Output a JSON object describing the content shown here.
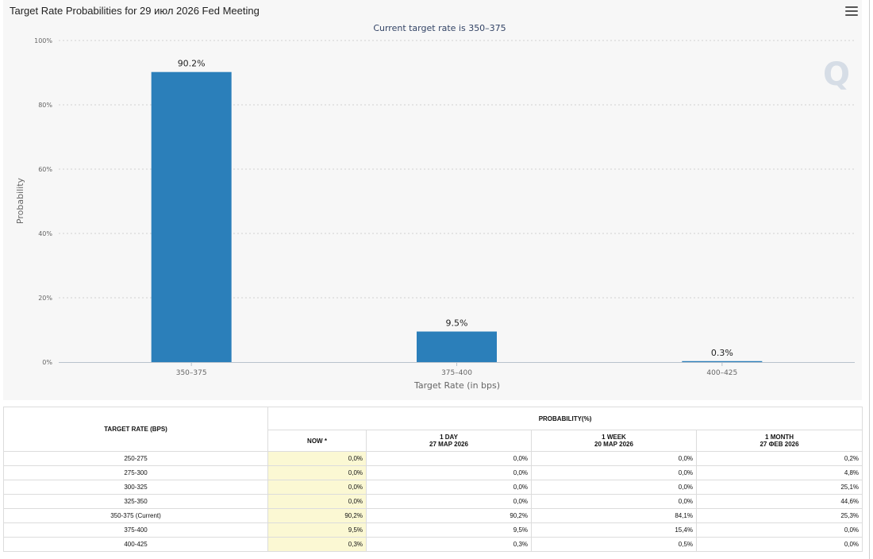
{
  "header": {
    "title": "Target Rate Probabilities for 29 июл 2026 Fed Meeting"
  },
  "chart_data": {
    "type": "bar",
    "subtitle": "Current target rate is 350–375",
    "categories": [
      "350–375",
      "375–400",
      "400–425"
    ],
    "values": [
      90.2,
      9.5,
      0.3
    ],
    "data_labels": [
      "90.2%",
      "9.5%",
      "0.3%"
    ],
    "xlabel": "Target Rate (in bps)",
    "ylabel": "Probability",
    "ylim": [
      0,
      100
    ],
    "yticks": [
      "0%",
      "20%",
      "40%",
      "60%",
      "80%",
      "100%"
    ],
    "grid": true,
    "bar_color": "#2b7fba"
  },
  "table": {
    "rate_header": "TARGET RATE (BPS)",
    "prob_header": "PROBABILITY(%)",
    "columns": [
      {
        "label": "NOW *",
        "date": ""
      },
      {
        "label": "1 DAY",
        "date": "27 МАР 2026"
      },
      {
        "label": "1 WEEK",
        "date": "20 МАР 2026"
      },
      {
        "label": "1 MONTH",
        "date": "27 ФЕВ 2026"
      }
    ],
    "rows": [
      {
        "rate": "250-275",
        "now": "0,0%",
        "day": "0,0%",
        "week": "0,0%",
        "month": "0,2%"
      },
      {
        "rate": "275-300",
        "now": "0,0%",
        "day": "0,0%",
        "week": "0,0%",
        "month": "4,8%"
      },
      {
        "rate": "300-325",
        "now": "0,0%",
        "day": "0,0%",
        "week": "0,0%",
        "month": "25,1%"
      },
      {
        "rate": "325-350",
        "now": "0,0%",
        "day": "0,0%",
        "week": "0,0%",
        "month": "44,6%"
      },
      {
        "rate": "350-375 (Current)",
        "now": "90,2%",
        "day": "90,2%",
        "week": "84,1%",
        "month": "25,3%"
      },
      {
        "rate": "375-400",
        "now": "9,5%",
        "day": "9,5%",
        "week": "15,4%",
        "month": "0,0%"
      },
      {
        "rate": "400-425",
        "now": "0,3%",
        "day": "0,3%",
        "week": "0,5%",
        "month": "0,0%"
      }
    ]
  },
  "colors": {
    "now_highlight": "#fbf8d3",
    "axis_text": "#666666",
    "subtitle": "#334466"
  }
}
